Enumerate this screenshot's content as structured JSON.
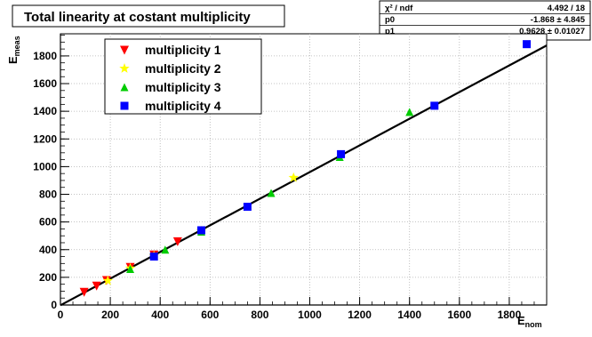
{
  "chart_data": {
    "type": "scatter",
    "title": "Total linearity at costant multiplicity",
    "xlabel": "E",
    "xlabel_sub": "nom",
    "ylabel": "E",
    "ylabel_sub": "meas",
    "xlim": [
      0,
      1950
    ],
    "ylim": [
      0,
      1960
    ],
    "x_ticks": [
      0,
      200,
      400,
      600,
      800,
      1000,
      1200,
      1400,
      1600,
      1800
    ],
    "y_ticks": [
      0,
      200,
      400,
      600,
      800,
      1000,
      1200,
      1400,
      1600,
      1800
    ],
    "grid": true,
    "legend_position": "top-left",
    "series": [
      {
        "name": "multiplicity 1",
        "marker": "triangle-down",
        "color": "#ff0000",
        "points": [
          [
            95,
            95
          ],
          [
            145,
            140
          ],
          [
            185,
            180
          ],
          [
            280,
            275
          ],
          [
            375,
            365
          ],
          [
            470,
            460
          ]
        ]
      },
      {
        "name": "multiplicity 2",
        "marker": "star",
        "color": "#ffff00",
        "points": [
          [
            190,
            175
          ],
          [
            280,
            265
          ],
          [
            375,
            355
          ],
          [
            565,
            535
          ],
          [
            935,
            920
          ]
        ]
      },
      {
        "name": "multiplicity 3",
        "marker": "triangle-up",
        "color": "#00cc00",
        "points": [
          [
            280,
            260
          ],
          [
            420,
            400
          ],
          [
            565,
            530
          ],
          [
            845,
            810
          ],
          [
            1120,
            1070
          ],
          [
            1400,
            1395
          ]
        ]
      },
      {
        "name": "multiplicity 4",
        "marker": "square",
        "color": "#0000ff",
        "points": [
          [
            375,
            350
          ],
          [
            565,
            540
          ],
          [
            750,
            710
          ],
          [
            1125,
            1090
          ],
          [
            1500,
            1440
          ],
          [
            1870,
            1885
          ]
        ]
      }
    ],
    "fit": {
      "p0": -1.868,
      "p1": 0.9628,
      "x_range": [
        0,
        1950
      ]
    },
    "stats_box": {
      "rows": [
        {
          "label": "χ² / ndf",
          "value": "4.492 / 18"
        },
        {
          "label": "p0",
          "value": "-1.868 ± 4.845"
        },
        {
          "label": "p1",
          "value": "0.9628 ± 0.01027"
        }
      ]
    }
  }
}
